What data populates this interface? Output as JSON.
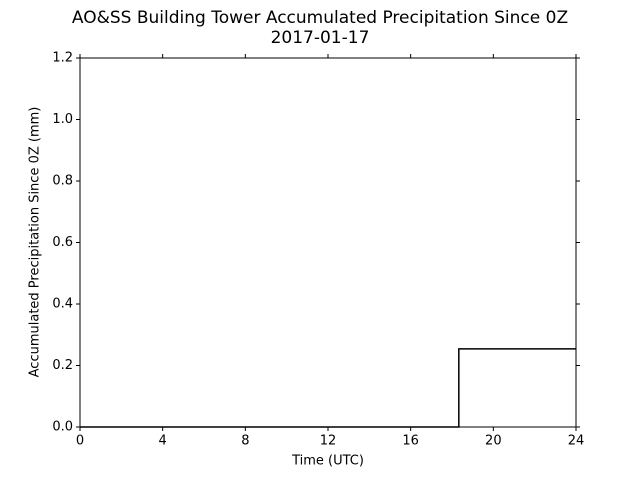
{
  "chart_data": {
    "type": "line",
    "title": "AO&SS Building Tower Accumulated Precipitation Since 0Z",
    "subtitle": "2017-01-17",
    "x_label": "Time (UTC)",
    "y_label": "Accumulated Precipitation Since 0Z (mm)",
    "x": [
      0,
      18.33,
      18.33,
      24
    ],
    "series": [
      {
        "color": "#000000",
        "values": [
          0,
          0,
          0.254,
          0.254
        ]
      }
    ],
    "xlim": [
      0,
      24
    ],
    "xticks": [
      0,
      4,
      8,
      12,
      16,
      20,
      24
    ],
    "ylim": [
      0,
      1.2
    ],
    "yticks": [
      {
        "value": 0,
        "label": "0.0"
      },
      0.2,
      0.4,
      0.6,
      0.8,
      {
        "value": 1,
        "label": "1.0"
      },
      1.2
    ],
    "grid": false
  }
}
